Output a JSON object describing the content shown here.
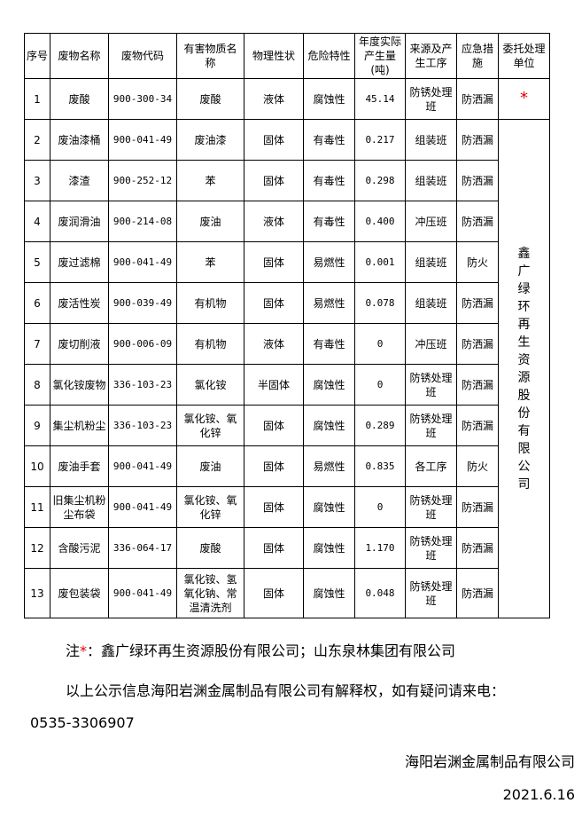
{
  "table": {
    "headers": [
      "序号",
      "废物名称",
      "废物代码",
      "有害物质名称",
      "物理性状",
      "危险特性",
      "年度实际产生量(吨)",
      "来源及产生工序",
      "应急措施",
      "委托处理单位"
    ],
    "rows": [
      [
        "1",
        "废酸",
        "900-300-34",
        "废酸",
        "液体",
        "腐蚀性",
        "45.14",
        "防锈处理班",
        "防洒漏"
      ],
      [
        "2",
        "废油漆桶",
        "900-041-49",
        "废油漆",
        "固体",
        "有毒性",
        "0.217",
        "组装班",
        "防洒漏"
      ],
      [
        "3",
        "漆渣",
        "900-252-12",
        "苯",
        "固体",
        "有毒性",
        "0.298",
        "组装班",
        "防洒漏"
      ],
      [
        "4",
        "废润滑油",
        "900-214-08",
        "废油",
        "液体",
        "有毒性",
        "0.400",
        "冲压班",
        "防洒漏"
      ],
      [
        "5",
        "废过滤棉",
        "900-041-49",
        "苯",
        "固体",
        "易燃性",
        "0.001",
        "组装班",
        "防火"
      ],
      [
        "6",
        "废活性炭",
        "900-039-49",
        "有机物",
        "固体",
        "易燃性",
        "0.078",
        "组装班",
        "防洒漏"
      ],
      [
        "7",
        "废切削液",
        "900-006-09",
        "有机物",
        "液体",
        "有毒性",
        "0",
        "冲压班",
        "防洒漏"
      ],
      [
        "8",
        "氯化铵废物",
        "336-103-23",
        "氯化铵",
        "半固体",
        "腐蚀性",
        "0",
        "防锈处理班",
        "防洒漏"
      ],
      [
        "9",
        "集尘机粉尘",
        "336-103-23",
        "氯化铵、氧化锌",
        "固体",
        "腐蚀性",
        "0.289",
        "防锈处理班",
        "防洒漏"
      ],
      [
        "10",
        "废油手套",
        "900-041-49",
        "废油",
        "固体",
        "易燃性",
        "0.835",
        "各工序",
        "防火"
      ],
      [
        "11",
        "旧集尘机粉尘布袋",
        "900-041-49",
        "氯化铵、氧化锌",
        "固体",
        "腐蚀性",
        "0",
        "防锈处理班",
        "防洒漏"
      ],
      [
        "12",
        "含酸污泥",
        "336-064-17",
        "废酸",
        "固体",
        "腐蚀性",
        "1.170",
        "防锈处理班",
        "防洒漏"
      ],
      [
        "13",
        "废包装袋",
        "900-041-49",
        "氯化铵、氢氧化钠、常温清洗剂",
        "固体",
        "腐蚀性",
        "0.048",
        "防锈处理班",
        "防洒漏"
      ]
    ],
    "row1_unit": "*",
    "merged_unit": "鑫广绿环再生资源股份有限公司"
  },
  "footer": {
    "note_prefix": "注",
    "note_star": "*",
    "note_text": "：鑫广绿环再生资源股份有限公司；山东泉林集团有限公司",
    "notice": "以上公示信息海阳岩渊金属制品有限公司有解释权，如有疑问请来电：",
    "phone": "0535-3306907",
    "company": "海阳岩渊金属制品有限公司",
    "date": "2021.6.16"
  },
  "colors": {
    "accent_red": "#e00000"
  }
}
